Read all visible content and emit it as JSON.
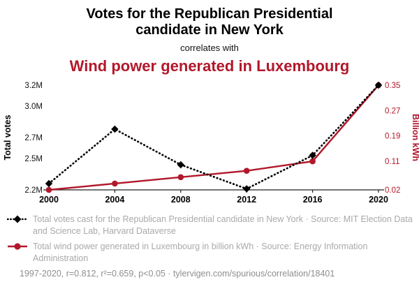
{
  "header": {
    "title_line1": "Votes for the Republican Presidential",
    "title_line2": "candidate in New York",
    "connector": "correlates with",
    "subtitle": "Wind power generated in Luxembourg"
  },
  "colors": {
    "accent_red": "#b2182b",
    "legend_gray": "#a9a9a9",
    "footer_gray": "#8e8e8e"
  },
  "chart_data": {
    "type": "line",
    "x": [
      2000,
      2004,
      2008,
      2012,
      2016,
      2020
    ],
    "x_ticks": [
      "2000",
      "2004",
      "2008",
      "2012",
      "2016",
      "2020"
    ],
    "series": [
      {
        "name": "Total votes cast for the Republican Presidential candidate in New York",
        "axis": "left",
        "unit": "million votes",
        "style": "dotted-black-diamond",
        "values": [
          2.26,
          2.78,
          2.44,
          2.21,
          2.53,
          3.2
        ]
      },
      {
        "name": "Total wind power generated in Luxembourg",
        "axis": "right",
        "unit": "billion kWh",
        "style": "solid-red-circle",
        "values": [
          0.02,
          0.04,
          0.06,
          0.08,
          0.11,
          0.35
        ]
      }
    ],
    "left_axis": {
      "label": "Total votes",
      "ticks": [
        "2.2M",
        "2.5M",
        "2.7M",
        "3.0M",
        "3.2M"
      ],
      "tick_values": [
        2.2,
        2.5,
        2.7,
        3.0,
        3.2
      ],
      "range": [
        2.2,
        3.2
      ]
    },
    "right_axis": {
      "label": "Billion kWh",
      "ticks": [
        "0.02",
        "0.11",
        "0.19",
        "0.27",
        "0.35"
      ],
      "tick_values": [
        0.02,
        0.11,
        0.19,
        0.27,
        0.35
      ],
      "range": [
        0.02,
        0.35
      ]
    },
    "grid": false,
    "legend_position": "bottom"
  },
  "legend": [
    {
      "marker": "black-diamond-dotted",
      "text": "Total votes cast for the Republican Presidential candidate in New York · Source: MIT Election Data and Science Lab, Harvard Dataverse"
    },
    {
      "marker": "red-circle-solid",
      "text": "Total wind power generated in Luxembourg in billion kWh · Source: Energy Information Administration"
    }
  ],
  "footer": {
    "text": "1997-2020, r=0.812, r²=0.659, p<0.05 · tylervigen.com/spurious/correlation/18401"
  }
}
